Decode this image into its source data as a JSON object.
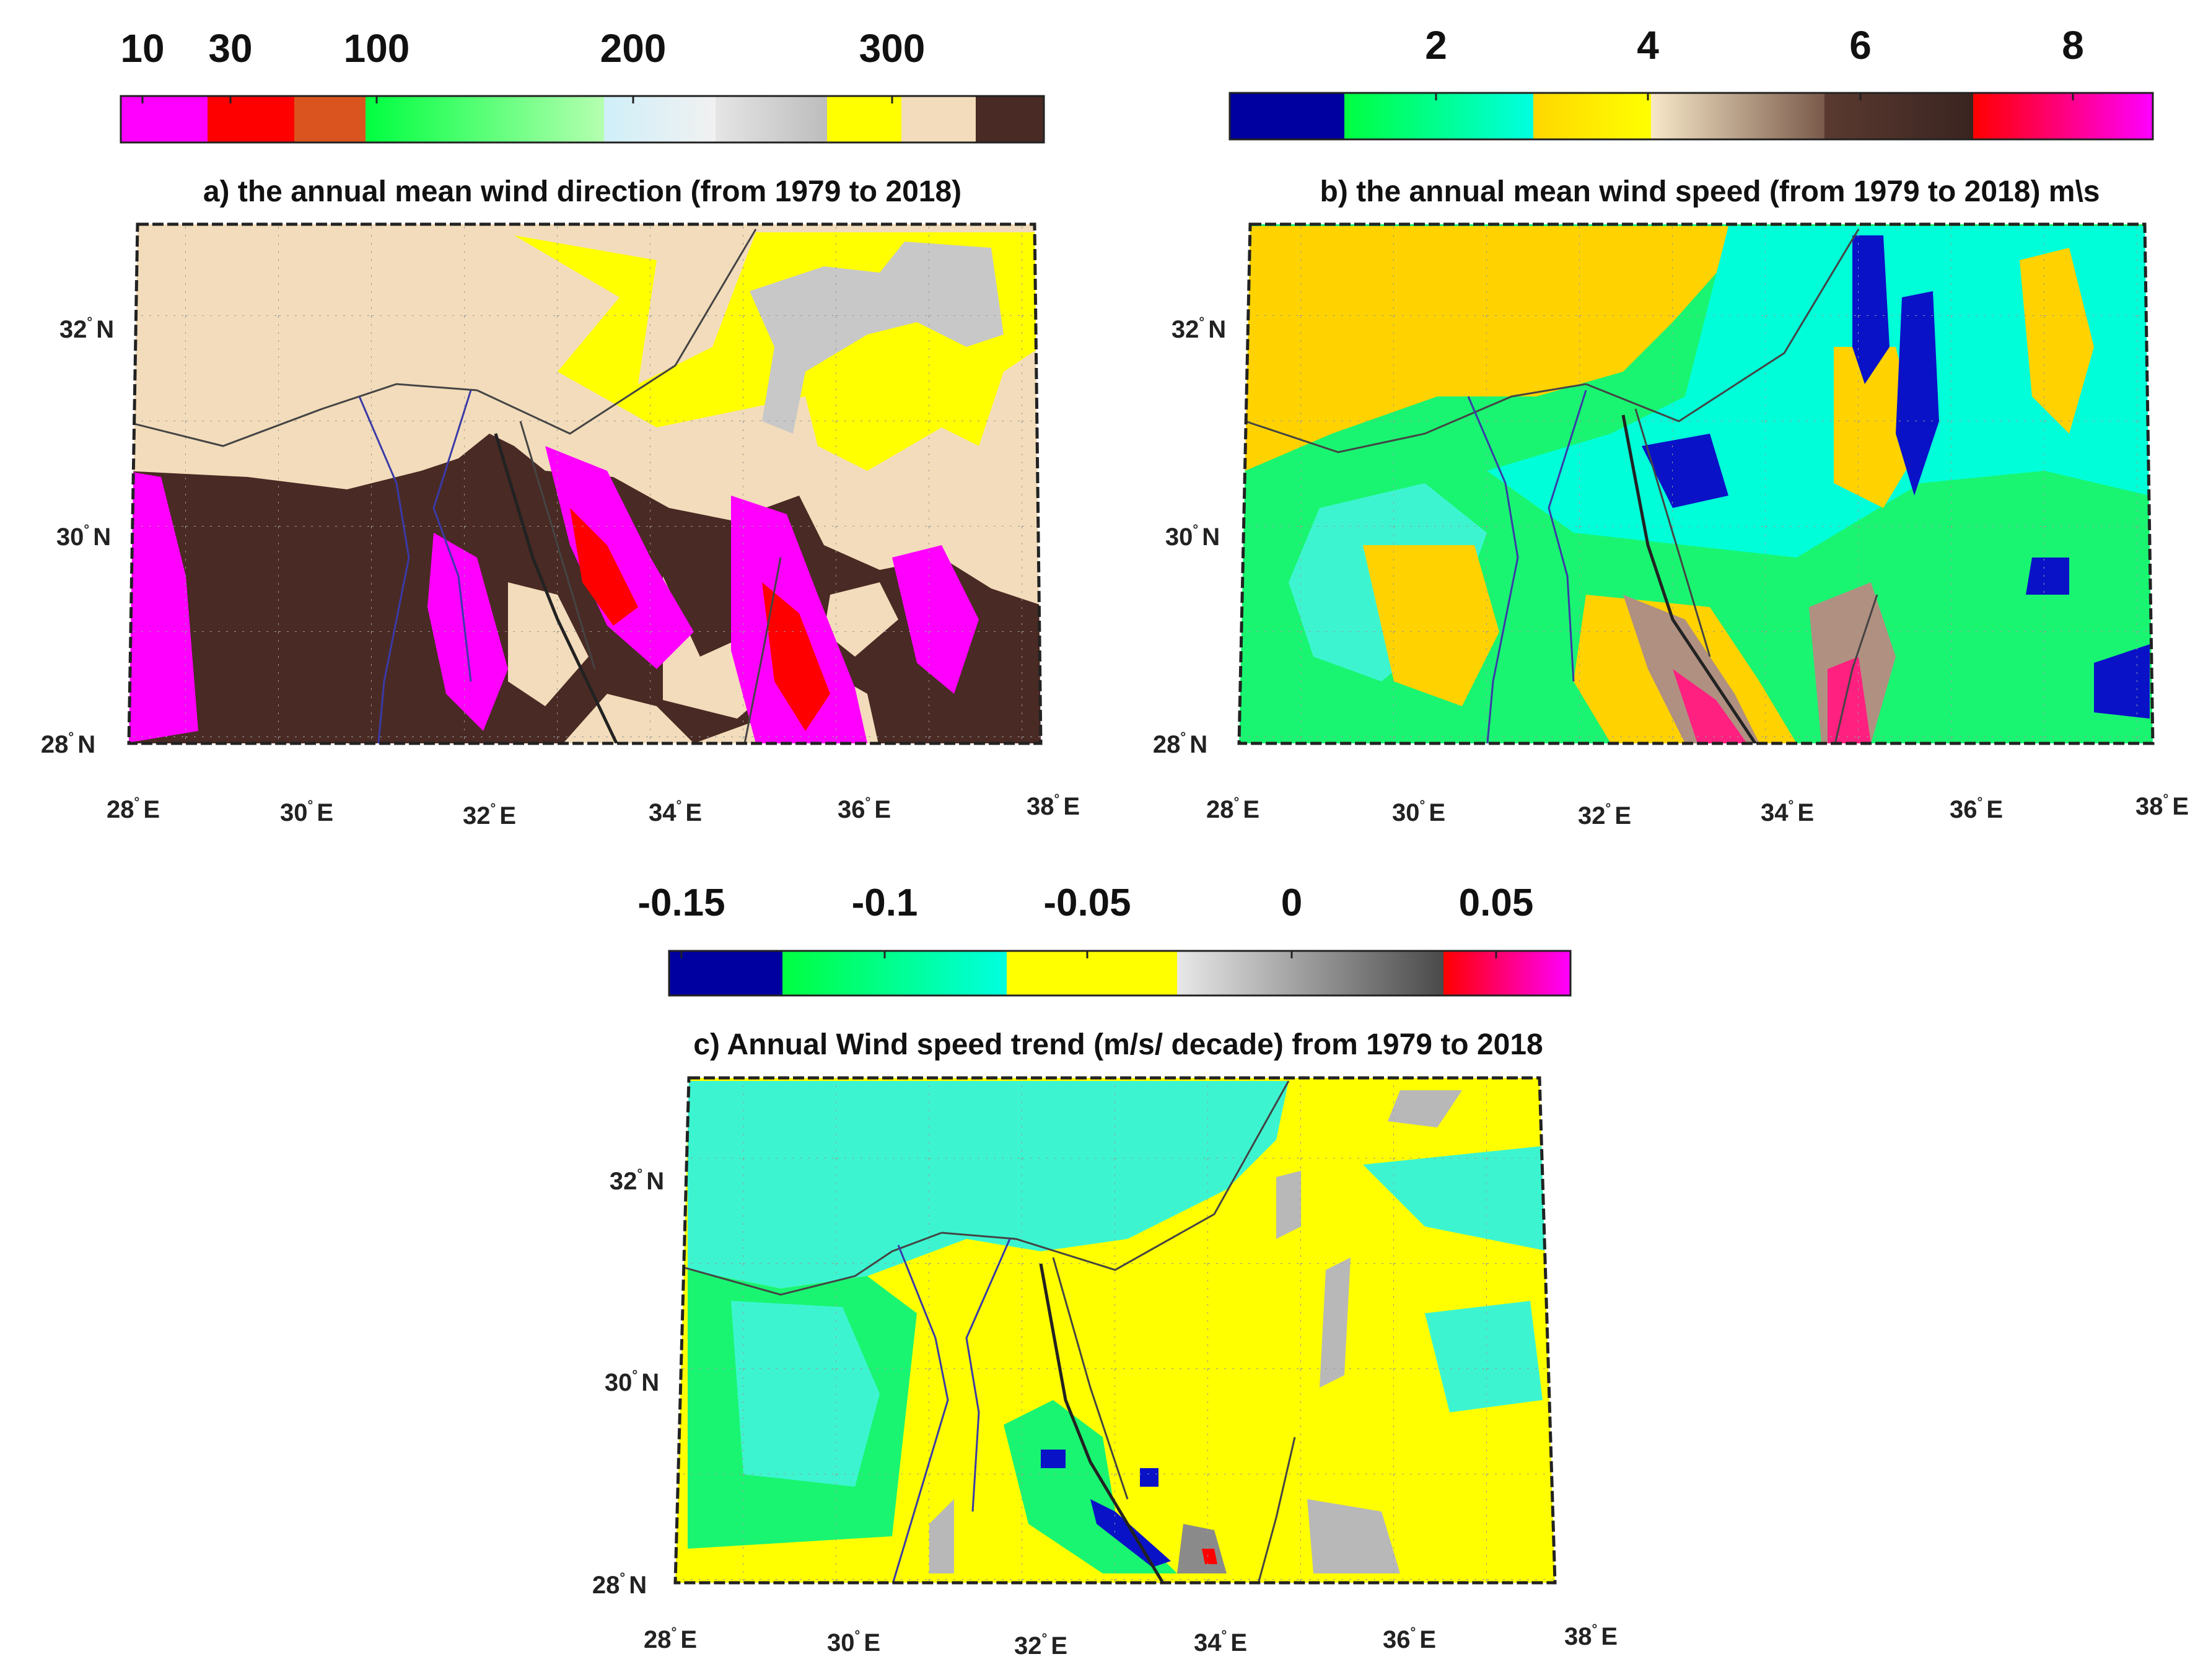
{
  "panels": [
    {
      "id": "a",
      "title": "a) the annual mean wind direction (from 1979 to 2018)",
      "colorbar": {
        "ticks": [
          {
            "label": "10",
            "value": 10
          },
          {
            "label": "30",
            "value": 30
          },
          {
            "label": "100",
            "value": 100
          },
          {
            "label": "200",
            "value": 200
          },
          {
            "label": "300",
            "value": 300
          }
        ],
        "segments": [
          {
            "color": "#ff00ff"
          },
          {
            "color": "#ff0000"
          },
          {
            "color": "#d9541e"
          },
          {
            "color": "#00ff40",
            "gradient_to": "#b5ffb0"
          },
          {
            "color": "#cfeff8",
            "gradient_to": "#f1f1f1"
          },
          {
            "color": "#e5e5e5",
            "gradient_to": "#bdbdbd"
          },
          {
            "color": "#ffff00"
          },
          {
            "color": "#f2dcbb"
          },
          {
            "color": "#4a2a24"
          }
        ]
      },
      "lat_labels": [
        "32",
        "30",
        "28"
      ],
      "lon_labels": [
        "28",
        "30",
        "32",
        "34",
        "36",
        "38"
      ],
      "lat_suffix": "N",
      "lon_suffix": "E",
      "dominant_colors": {
        "desert_beige": "#f2dcbb",
        "dark_brown": "#4a2a24",
        "yellow": "#ffff00",
        "magenta": "#ff00ff",
        "red": "#ff0000",
        "gray": "#c8c8c8"
      }
    },
    {
      "id": "b",
      "title": "b) the annual mean wind speed (from 1979 to 2018) m\\s",
      "colorbar": {
        "ticks": [
          {
            "label": "2",
            "value": 2
          },
          {
            "label": "4",
            "value": 4
          },
          {
            "label": "6",
            "value": 6
          },
          {
            "label": "8",
            "value": 8
          }
        ],
        "segments": [
          {
            "color": "#0000a0"
          },
          {
            "color": "#00ff40",
            "gradient_to": "#00ffe0"
          },
          {
            "color": "#ffd700",
            "gradient_to": "#ffff00"
          },
          {
            "color": "#f7e8c8",
            "gradient_to": "#7a5a4a"
          },
          {
            "color": "#5a3a30",
            "gradient_to": "#3a2420"
          },
          {
            "color": "#ff0000",
            "gradient_to": "#ff00ff"
          }
        ]
      },
      "lat_labels": [
        "32",
        "30",
        "28"
      ],
      "lon_labels": [
        "28",
        "30",
        "32",
        "34",
        "36",
        "38"
      ],
      "lat_suffix": "N",
      "lon_suffix": "E",
      "dominant_colors": {
        "orange_yellow": "#ffd200",
        "cyan": "#00ffd8",
        "green": "#19f571",
        "blue": "#0a12c8",
        "magenta_red": "#ff2080",
        "brown": "#8a6a58"
      }
    },
    {
      "id": "c",
      "title": "c) Annual Wind speed trend (m/s/ decade) from 1979 to 2018",
      "colorbar": {
        "ticks": [
          {
            "label": "-0.15",
            "value": -0.15
          },
          {
            "label": "-0.1",
            "value": -0.1
          },
          {
            "label": "-0.05",
            "value": -0.05
          },
          {
            "label": "0",
            "value": 0
          },
          {
            "label": "0.05",
            "value": 0.05
          }
        ],
        "segments": [
          {
            "color": "#0000a0"
          },
          {
            "color": "#00ff40",
            "gradient_to": "#00ffe0"
          },
          {
            "color": "#ffff00"
          },
          {
            "color": "#e8e8e8",
            "gradient_to": "#4a4a4a"
          },
          {
            "color": "#ff0000",
            "gradient_to": "#ff00ff"
          }
        ]
      },
      "lat_labels": [
        "32",
        "30",
        "28"
      ],
      "lon_labels": [
        "28",
        "30",
        "32",
        "34",
        "36",
        "38"
      ],
      "lat_suffix": "N",
      "lon_suffix": "E",
      "dominant_colors": {
        "yellow": "#ffff00",
        "cyan": "#3cf5d0",
        "green": "#19f571",
        "gray": "#b8b8b8",
        "blue": "#0a12c8",
        "red": "#ff0000"
      }
    }
  ]
}
